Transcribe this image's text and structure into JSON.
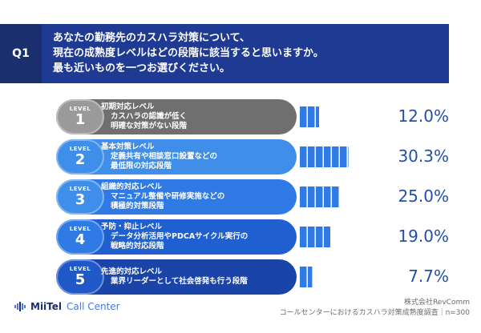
{
  "question": {
    "badge": "Q1",
    "lines": [
      "あなたの勤務先のカスハラ対策について、",
      "現在の成熟度レベルはどの段階に該当すると思いますか。",
      "最も近いものを一つお選びください。"
    ]
  },
  "level_word": "LEVEL",
  "levels": [
    {
      "num": "1",
      "title": "初期対応レベル",
      "desc": [
        "カスハラの認識が低く",
        "明確な対策がない段階"
      ],
      "badge_color": "#9a9a9a",
      "row_color": "#6f6f6f",
      "bar_color": "#2f7ae5"
    },
    {
      "num": "2",
      "title": "基本対策レベル",
      "desc": [
        "定義共有や相談窓口設置などの",
        "最低限の対応段階"
      ],
      "badge_color": "#3f8eea",
      "row_color": "#3f8eea",
      "bar_color": "#2f7ae5"
    },
    {
      "num": "3",
      "title": "組織的対応レベル",
      "desc": [
        "マニュアル整備や研修実施などの",
        "積極的対策段階"
      ],
      "badge_color": "#3f8eea",
      "row_color": "#2f7ae5",
      "bar_color": "#2f7ae5"
    },
    {
      "num": "4",
      "title": "予防・抑止レベル",
      "desc": [
        "データ分析活用やPDCAサイクル実行の",
        "戦略的対応段階"
      ],
      "badge_color": "#2f7ae5",
      "row_color": "#1f5fd0",
      "bar_color": "#2f7ae5"
    },
    {
      "num": "5",
      "title": "先進的対応レベル",
      "desc": [
        "業界リーダーとして社会啓発も行う段階"
      ],
      "badge_color": "#2158c8",
      "row_color": "#1b44a8",
      "bar_color": "#2f7ae5"
    }
  ],
  "chart_data": {
    "type": "bar",
    "categories": [
      "LEVEL 1",
      "LEVEL 2",
      "LEVEL 3",
      "LEVEL 4",
      "LEVEL 5"
    ],
    "values": [
      12.0,
      30.3,
      25.0,
      19.0,
      7.7
    ],
    "value_labels": [
      "12.0%",
      "30.3%",
      "25.0%",
      "19.0%",
      "7.7%"
    ],
    "xlim": [
      0,
      100
    ]
  },
  "footer": {
    "logo_main": "MiiTel",
    "logo_sub": "Call Center",
    "company": "株式会社RevComm",
    "survey": "コールセンターにおけるカスハラ対策成熟度調査｜n=300"
  }
}
